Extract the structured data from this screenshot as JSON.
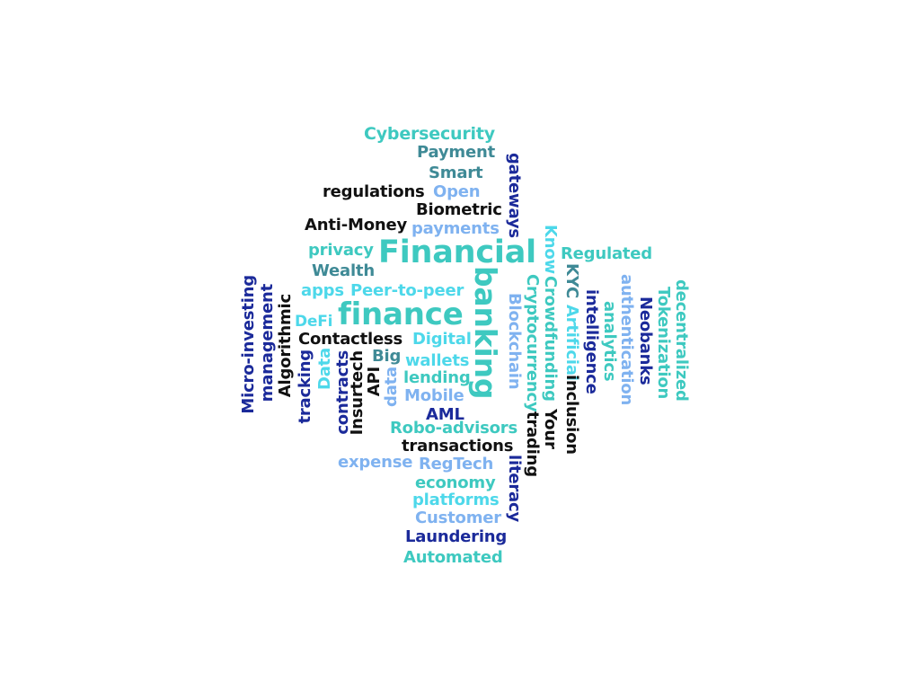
{
  "palette": {
    "teal": "#3ec9c0",
    "slate": "#3f8a96",
    "black": "#111111",
    "sky": "#7fb2f0",
    "navy": "#1b2a9a",
    "cyan": "#4dd8ea"
  },
  "words": [
    "Cybersecurity",
    "Payment",
    "Smart",
    "regulations",
    "Open",
    "Biometric",
    "Anti-Money",
    "payments",
    "Financial",
    "privacy",
    "Regulated",
    "Wealth",
    "apps",
    "Peer-to-peer",
    "finance",
    "DeFi",
    "Contactless",
    "Digital",
    "Big",
    "wallets",
    "lending",
    "Mobile",
    "AML",
    "Robo-advisors",
    "transactions",
    "expense",
    "RegTech",
    "economy",
    "platforms",
    "Customer",
    "Laundering",
    "Automated",
    "gateways",
    "banking",
    "Know",
    "KYC",
    "Blockchain",
    "Cryptocurrency",
    "Crowdfunding",
    "Artificial",
    "inclusion",
    "intelligence",
    "Your",
    "trading",
    "literacy",
    "analytics",
    "authentication",
    "Neobanks",
    "Tokenization",
    "decentralized",
    "Algorithmic",
    "management",
    "Micro-investing",
    "tracking",
    "Data",
    "data",
    "contracts",
    "Insurtech",
    "API"
  ]
}
